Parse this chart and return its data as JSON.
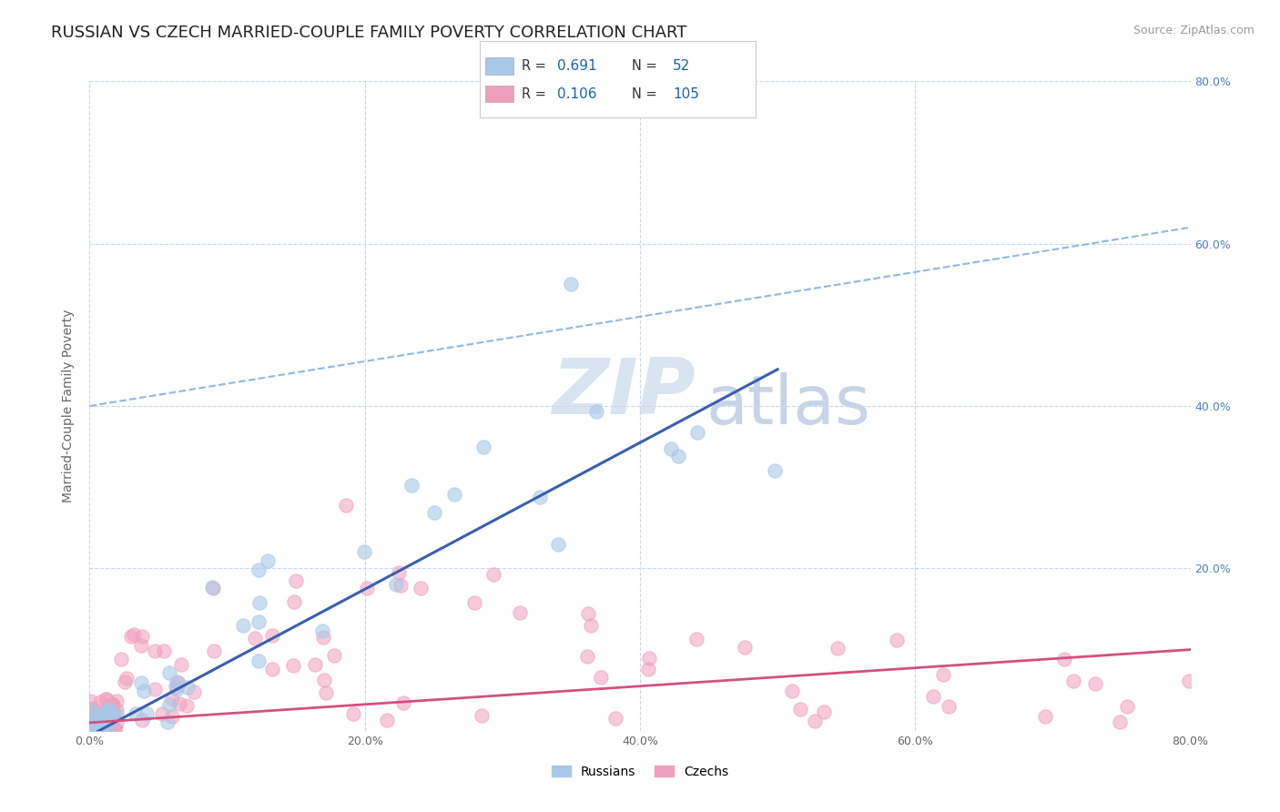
{
  "title": "RUSSIAN VS CZECH MARRIED-COUPLE FAMILY POVERTY CORRELATION CHART",
  "source_text": "Source: ZipAtlas.com",
  "ylabel": "Married-Couple Family Poverty",
  "xlim": [
    0,
    0.8
  ],
  "ylim": [
    0,
    0.8
  ],
  "xtick_vals": [
    0.0,
    0.2,
    0.4,
    0.6,
    0.8
  ],
  "ytick_vals": [
    0.0,
    0.2,
    0.4,
    0.6,
    0.8
  ],
  "xticklabels": [
    "0.0%",
    "20.0%",
    "40.0%",
    "60.0%",
    "80.0%"
  ],
  "yticklabels_left": [
    "",
    "",
    "",
    "",
    ""
  ],
  "yticklabels_right": [
    "",
    "20.0%",
    "40.0%",
    "60.0%",
    "80.0%"
  ],
  "russian_R": 0.691,
  "russian_N": 52,
  "czech_R": 0.106,
  "czech_N": 105,
  "russian_color": "#a8c8e8",
  "czech_color": "#f0a0bc",
  "trend_russian_color": "#3a5fb0",
  "trend_czech_color": "#d45080",
  "trend_dashed_color": "#90b8e0",
  "background_color": "#ffffff",
  "grid_color": "#c8d8ee",
  "watermark_color": "#d8e4f0",
  "right_tick_color": "#5080c0",
  "title_fontsize": 13,
  "axis_label_fontsize": 10,
  "tick_fontsize": 9,
  "source_fontsize": 9,
  "legend_r_color": "#1a5fb4",
  "legend_n_color": "#1a5fb4"
}
